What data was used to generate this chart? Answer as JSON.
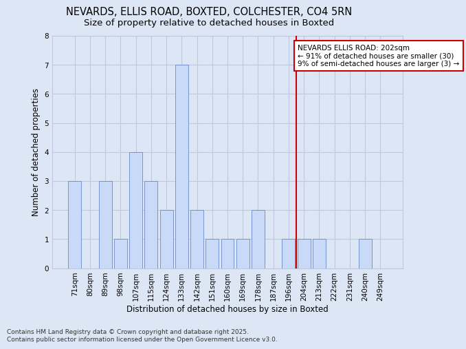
{
  "title_line1": "NEVARDS, ELLIS ROAD, BOXTED, COLCHESTER, CO4 5RN",
  "title_line2": "Size of property relative to detached houses in Boxted",
  "xlabel": "Distribution of detached houses by size in Boxted",
  "ylabel": "Number of detached properties",
  "categories": [
    "71sqm",
    "80sqm",
    "89sqm",
    "98sqm",
    "107sqm",
    "115sqm",
    "124sqm",
    "133sqm",
    "142sqm",
    "151sqm",
    "160sqm",
    "169sqm",
    "178sqm",
    "187sqm",
    "196sqm",
    "204sqm",
    "213sqm",
    "222sqm",
    "231sqm",
    "240sqm",
    "249sqm"
  ],
  "values": [
    3,
    0,
    3,
    1,
    4,
    3,
    2,
    7,
    2,
    1,
    1,
    1,
    2,
    0,
    1,
    1,
    1,
    0,
    0,
    1,
    0
  ],
  "bar_color": "#c9daf8",
  "bar_edge_color": "#6688cc",
  "grid_color": "#c0c8e0",
  "background_color": "#dce6f5",
  "vline_x_idx": 14,
  "vline_color": "#cc0000",
  "annotation_text": "NEVARDS ELLIS ROAD: 202sqm\n← 91% of detached houses are smaller (30)\n9% of semi-detached houses are larger (3) →",
  "annotation_box_facecolor": "#ffffff",
  "annotation_box_edgecolor": "#cc0000",
  "ylim": [
    0,
    8
  ],
  "yticks": [
    0,
    1,
    2,
    3,
    4,
    5,
    6,
    7,
    8
  ],
  "footnote": "Contains HM Land Registry data © Crown copyright and database right 2025.\nContains public sector information licensed under the Open Government Licence v3.0.",
  "title_fontsize": 10.5,
  "subtitle_fontsize": 9.5,
  "axis_label_fontsize": 8.5,
  "tick_fontsize": 7.5,
  "annotation_fontsize": 7.5,
  "footnote_fontsize": 6.5
}
